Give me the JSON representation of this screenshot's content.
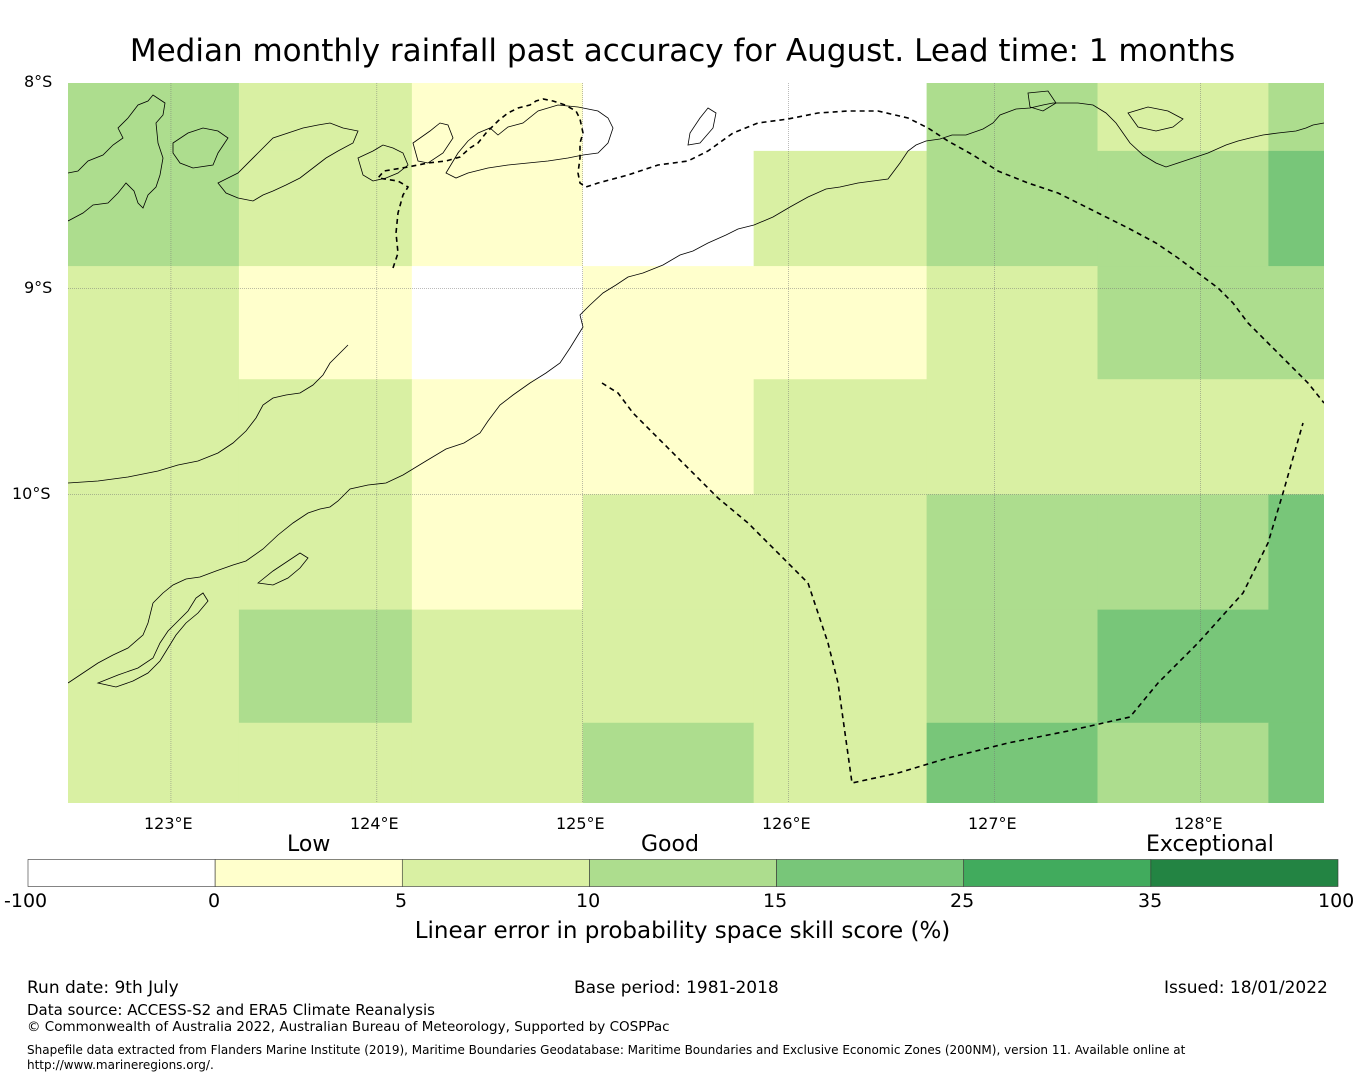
{
  "title": "Median monthly rainfall past accuracy for August. Lead time: 1 months",
  "map": {
    "lat_labels": [
      "8°S",
      "9°S",
      "10°S"
    ],
    "lon_labels": [
      "123°E",
      "124°E",
      "125°E",
      "126°E",
      "127°E",
      "128°E"
    ],
    "extent": {
      "lon": [
        122.5,
        128.6
      ],
      "lat": [
        -11.5,
        -8.0
      ]
    },
    "grid_lons": [
      122.5,
      123.33,
      124.17,
      125.0,
      125.83,
      126.67,
      127.5,
      128.33,
      128.6
    ],
    "grid_lats": [
      -8.0,
      -8.33,
      -8.89,
      -9.44,
      -10.0,
      -10.56,
      -11.11,
      -11.5
    ],
    "cell_categories": [
      [
        3,
        2,
        1,
        0,
        0,
        3,
        2,
        3
      ],
      [
        3,
        2,
        1,
        0,
        2,
        3,
        3,
        4
      ],
      [
        2,
        1,
        0,
        1,
        1,
        2,
        3,
        3
      ],
      [
        2,
        2,
        1,
        1,
        2,
        2,
        2,
        2
      ],
      [
        2,
        2,
        1,
        2,
        2,
        3,
        3,
        4
      ],
      [
        2,
        3,
        2,
        2,
        2,
        3,
        4,
        4
      ],
      [
        2,
        2,
        2,
        3,
        2,
        4,
        3,
        4
      ]
    ]
  },
  "colorbar": {
    "category_labels": [
      "Low",
      "Good",
      "Exceptional"
    ],
    "ticks": [
      "-100",
      "0",
      "5",
      "10",
      "15",
      "25",
      "35",
      "100"
    ],
    "colors": [
      "#ffffff",
      "#ffffcc",
      "#d9f0a3",
      "#addd8e",
      "#78c679",
      "#41ab5d",
      "#238443"
    ],
    "label": "Linear error in probability space skill score (%)"
  },
  "footer": {
    "run_date": "Run date: 9th July",
    "base_period": "Base period: 1981-2018",
    "issued": "Issued: 18/01/2022",
    "data_source": "Data source: ACCESS-S2 and ERA5 Climate Reanalysis",
    "copyright": "© Commonwealth of Australia 2022, Australian Bureau of Meteorology, Supported by COSPPac",
    "shapefile_note": "Shapefile data extracted from Flanders Marine Institute (2019), Maritime Boundaries Geodatabase: Maritime Boundaries and Exclusive Economic Zones (200NM), version 11. Available online at http://www.marineregions.org/."
  }
}
